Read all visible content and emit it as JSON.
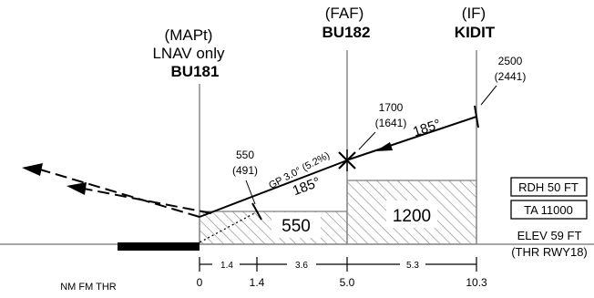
{
  "fixes": [
    {
      "id": "mapt",
      "role": "(MAPt)",
      "note": "LNAV only",
      "name": "BU181"
    },
    {
      "id": "faf",
      "role": "(FAF)",
      "name": "BU182"
    },
    {
      "id": "if",
      "role": "(IF)",
      "name": "KIDIT"
    }
  ],
  "altitudes": {
    "if": {
      "alt": "2500",
      "hat": "(2441)"
    },
    "faf": {
      "alt": "1700",
      "hat": "(1641)"
    },
    "sdf": {
      "alt": "550",
      "hat": "(491)"
    }
  },
  "courses": {
    "intermediate": "185°",
    "final": "185°"
  },
  "glidepath": "GP 3.0° (5.2%)",
  "min_altitudes": {
    "final": "550",
    "intermediate": "1200"
  },
  "info_boxes": {
    "rdh": "RDH 50 FT",
    "ta": "TA 11000"
  },
  "elevation": {
    "elev": "ELEV 59 FT",
    "thr": "(THR RWY18)"
  },
  "distance": {
    "axis_label": "NM FM THR",
    "ticks": [
      "0",
      "1.4",
      "5.0",
      "10.3"
    ],
    "segments": [
      "1.4",
      "3.6",
      "5.3"
    ]
  }
}
